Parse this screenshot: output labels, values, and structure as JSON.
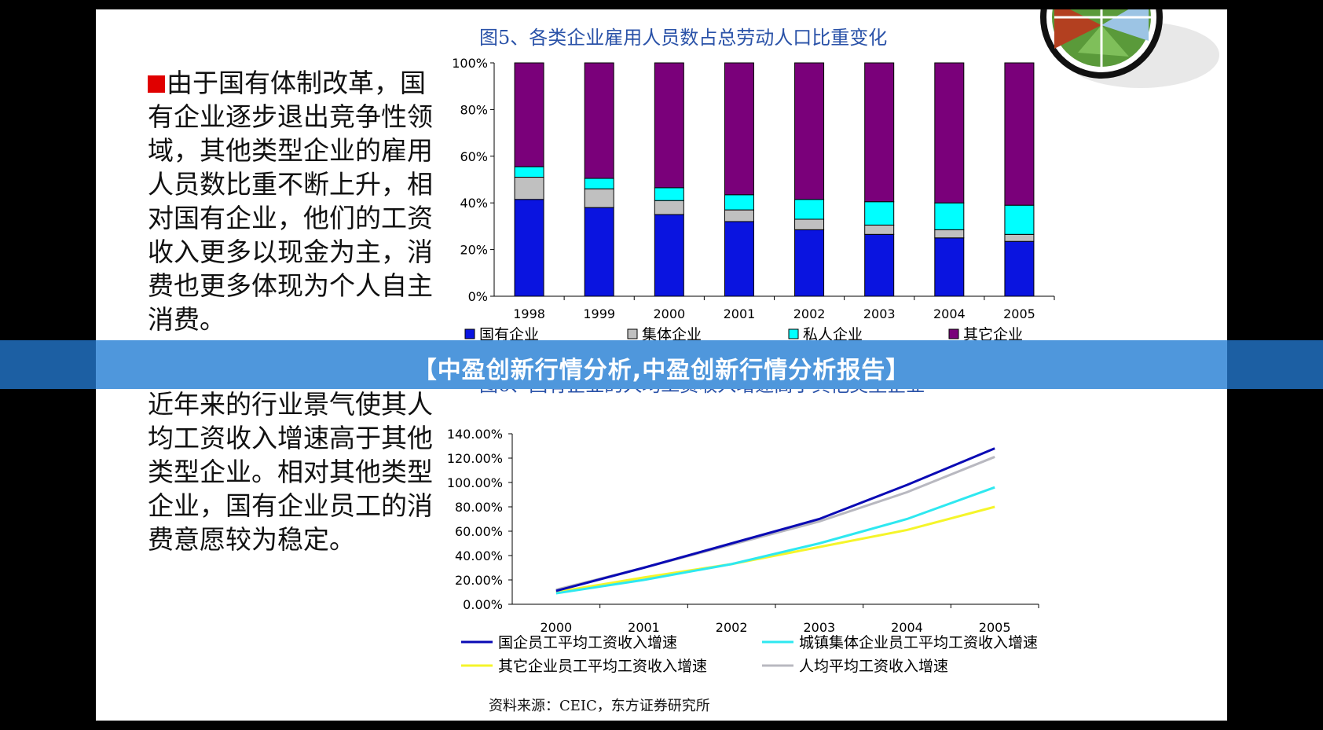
{
  "slide": {
    "para1": "由于国有体制改革，国有企业逐步退出竞争性领域，其他类型企业的雇用人员数比重不断上升，相对国有企业，他们的工资收入更多以现金为主，消费也更多体现为个人自主消费。",
    "para1_bullet_color": "#e00000",
    "para2": "国有企业的减员增效及近年来的行业景气使其人均工资收入增速高于其他类型企业。相对其他类型企业，国有企业员工的消费意愿较为稳定。",
    "para2_bullet_color": "#6b4f9a",
    "source": "资料来源：CEIC，东方证券研究所"
  },
  "banner": {
    "text": "【中盈创新行情分析,中盈创新行情分析报告】"
  },
  "chart_data": [
    {
      "type": "bar",
      "stacked": true,
      "title": "图5、各类企业雇用人员数占总劳动人口比重变化",
      "categories": [
        "1998",
        "1999",
        "2000",
        "2001",
        "2002",
        "2003",
        "2004",
        "2005"
      ],
      "ylim": [
        0,
        100
      ],
      "y_ticks": [
        "0%",
        "20%",
        "40%",
        "60%",
        "80%",
        "100%"
      ],
      "legend_position": "bottom",
      "series": [
        {
          "name": "国有企业",
          "color": "#0a14e0",
          "values": [
            41.5,
            38,
            35,
            32,
            28.5,
            26.5,
            25,
            23.5
          ]
        },
        {
          "name": "集体企业",
          "color": "#c0c0c0",
          "values": [
            9.5,
            8,
            6,
            5,
            4.5,
            4,
            3.5,
            3
          ]
        },
        {
          "name": "私人企业",
          "color": "#00ffff",
          "values": [
            4.5,
            4.5,
            5.5,
            6.5,
            8.5,
            10,
            11.5,
            12.5
          ]
        },
        {
          "name": "其它企业",
          "color": "#7a007a",
          "values": [
            44.5,
            49.5,
            53.5,
            56.5,
            58.5,
            59.5,
            60,
            61
          ]
        }
      ]
    },
    {
      "type": "line",
      "title": "图6、国有企业的人均工资收入增速高于其他类型企业",
      "categories": [
        "2000",
        "2001",
        "2002",
        "2003",
        "2004",
        "2005"
      ],
      "ylim": [
        0,
        140
      ],
      "y_ticks": [
        "0.00%",
        "20.00%",
        "40.00%",
        "60.00%",
        "80.00%",
        "100.00%",
        "120.00%",
        "140.00%"
      ],
      "legend_position": "bottom",
      "series": [
        {
          "name": "国企员工平均工资收入增速",
          "color": "#0a0ab4",
          "values": [
            11,
            30,
            50,
            70,
            98,
            128
          ]
        },
        {
          "name": "城镇集体企业员工平均工资收入增速",
          "color": "#2ee8f0",
          "values": [
            9,
            20,
            33,
            50,
            70,
            96
          ]
        },
        {
          "name": "其它企业员工平均工资收入增速",
          "color": "#f5f52a",
          "values": [
            10,
            22,
            33,
            47,
            61,
            80
          ]
        },
        {
          "name": "人均平均工资收入增速",
          "color": "#b8b8c0",
          "values": [
            12,
            30,
            49,
            68,
            92,
            121
          ]
        }
      ]
    }
  ]
}
